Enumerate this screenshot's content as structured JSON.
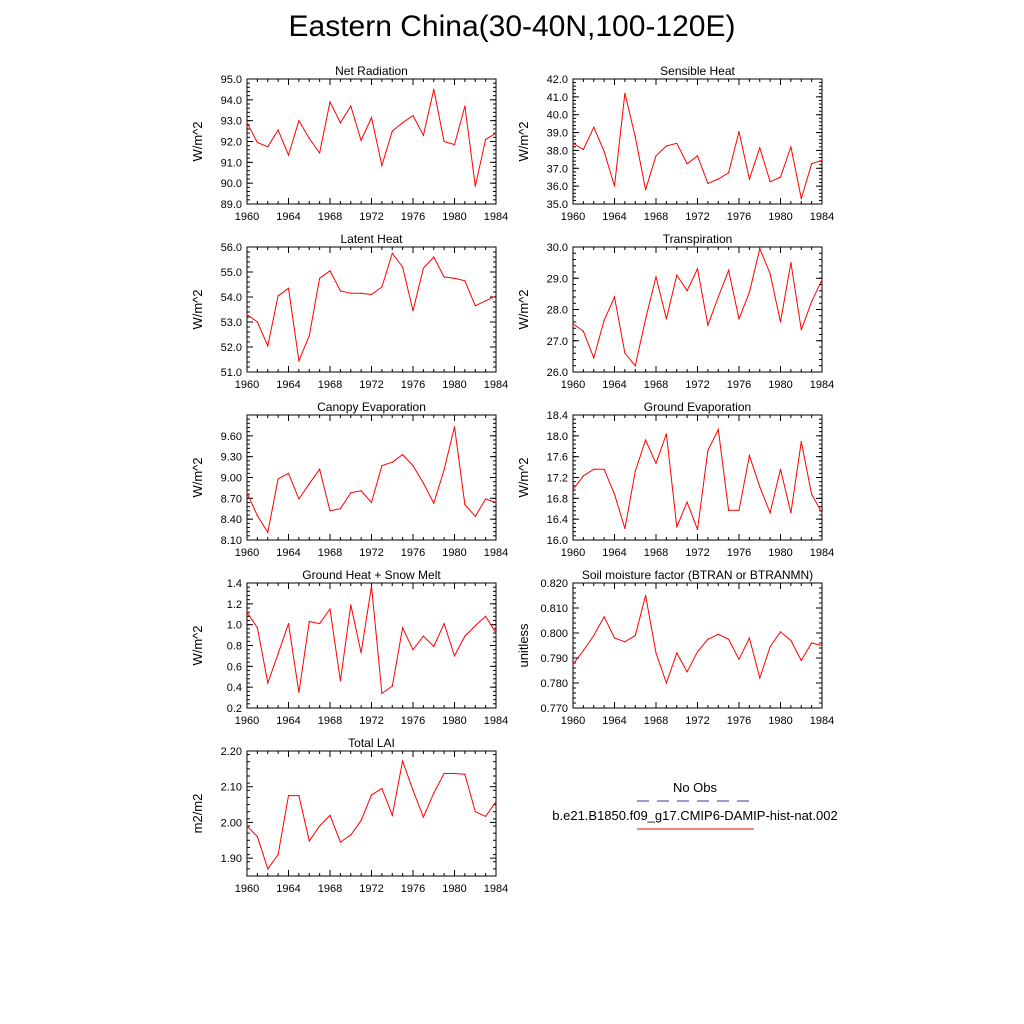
{
  "title": "Eastern China(30-40N,100-120E)",
  "colors": {
    "model": "#ff0000",
    "obs": "#3a3a9a",
    "axis": "#000000"
  },
  "legend": {
    "obs_label": "No Obs",
    "model_label": "b.e21.B1850.f09_g17.CMIP6-DAMIP-hist-nat.002"
  },
  "chart_data": [
    {
      "type": "line",
      "title": "Net Radiation",
      "xlabel": "",
      "ylabel": "W/m^2",
      "xlim": [
        1960,
        1984
      ],
      "ylim": [
        89.0,
        95.0
      ],
      "xticks": [
        "1960",
        "1964",
        "1968",
        "1972",
        "1976",
        "1980",
        "1984"
      ],
      "yticks": [
        "89.0",
        "90.0",
        "91.0",
        "92.0",
        "93.0",
        "94.0",
        "95.0"
      ],
      "ytick_values": [
        89,
        90,
        91,
        92,
        93,
        94,
        95
      ],
      "series": [
        {
          "x": [
            1960,
            1961,
            1962,
            1963,
            1964,
            1965,
            1966,
            1967,
            1968,
            1969,
            1970,
            1971,
            1972,
            1973,
            1974,
            1975,
            1976,
            1977,
            1978,
            1979,
            1980,
            1981,
            1982,
            1983,
            1984
          ],
          "values": [
            92.9,
            91.95,
            91.75,
            92.55,
            91.35,
            93.0,
            92.15,
            91.45,
            93.9,
            92.9,
            93.7,
            92.05,
            93.15,
            90.85,
            92.5,
            92.9,
            93.25,
            92.3,
            94.5,
            92.0,
            91.85,
            93.7,
            89.85,
            92.1,
            92.4
          ]
        }
      ]
    },
    {
      "type": "line",
      "title": "Sensible Heat",
      "xlabel": "",
      "ylabel": "W/m^2",
      "xlim": [
        1960,
        1984
      ],
      "ylim": [
        35.0,
        42.0
      ],
      "xticks": [
        "1960",
        "1964",
        "1968",
        "1972",
        "1976",
        "1980",
        "1984"
      ],
      "yticks": [
        "35.0",
        "36.0",
        "37.0",
        "38.0",
        "39.0",
        "40.0",
        "41.0",
        "42.0"
      ],
      "ytick_values": [
        35,
        36,
        37,
        38,
        39,
        40,
        41,
        42
      ],
      "series": [
        {
          "x": [
            1960,
            1961,
            1962,
            1963,
            1964,
            1965,
            1966,
            1967,
            1968,
            1969,
            1970,
            1971,
            1972,
            1973,
            1974,
            1975,
            1976,
            1977,
            1978,
            1979,
            1980,
            1981,
            1982,
            1983,
            1984
          ],
          "values": [
            38.4,
            38.05,
            39.3,
            37.95,
            36.0,
            41.2,
            38.75,
            35.8,
            37.7,
            38.25,
            38.4,
            37.25,
            37.7,
            36.15,
            36.4,
            36.75,
            39.05,
            36.4,
            38.15,
            36.25,
            36.5,
            38.2,
            35.3,
            37.25,
            37.45
          ]
        }
      ]
    },
    {
      "type": "line",
      "title": "Latent Heat",
      "xlabel": "",
      "ylabel": "W/m^2",
      "xlim": [
        1960,
        1984
      ],
      "ylim": [
        51.0,
        56.0
      ],
      "xticks": [
        "1960",
        "1964",
        "1968",
        "1972",
        "1976",
        "1980",
        "1984"
      ],
      "yticks": [
        "51.0",
        "52.0",
        "53.0",
        "54.0",
        "55.0",
        "56.0"
      ],
      "ytick_values": [
        51,
        52,
        53,
        54,
        55,
        56
      ],
      "series": [
        {
          "x": [
            1960,
            1961,
            1962,
            1963,
            1964,
            1965,
            1966,
            1967,
            1968,
            1969,
            1970,
            1971,
            1972,
            1973,
            1974,
            1975,
            1976,
            1977,
            1978,
            1979,
            1980,
            1981,
            1982,
            1983,
            1984
          ],
          "values": [
            53.3,
            53.0,
            52.05,
            54.05,
            54.35,
            51.45,
            52.45,
            54.75,
            55.05,
            54.25,
            54.15,
            54.15,
            54.1,
            54.4,
            55.75,
            55.2,
            53.45,
            55.15,
            55.6,
            54.8,
            54.75,
            54.65,
            53.65,
            53.85,
            54.05
          ]
        }
      ]
    },
    {
      "type": "line",
      "title": "Transpiration",
      "xlabel": "",
      "ylabel": "W/m^2",
      "xlim": [
        1960,
        1984
      ],
      "ylim": [
        26.0,
        30.0
      ],
      "xticks": [
        "1960",
        "1964",
        "1968",
        "1972",
        "1976",
        "1980",
        "1984"
      ],
      "yticks": [
        "26.0",
        "27.0",
        "28.0",
        "29.0",
        "30.0"
      ],
      "ytick_values": [
        26,
        27,
        28,
        29,
        30
      ],
      "series": [
        {
          "x": [
            1960,
            1961,
            1962,
            1963,
            1964,
            1965,
            1966,
            1967,
            1968,
            1969,
            1970,
            1971,
            1972,
            1973,
            1974,
            1975,
            1976,
            1977,
            1978,
            1979,
            1980,
            1981,
            1982,
            1983,
            1984
          ],
          "values": [
            27.55,
            27.3,
            26.45,
            27.65,
            28.4,
            26.6,
            26.2,
            27.7,
            29.05,
            27.7,
            29.1,
            28.6,
            29.3,
            27.5,
            28.4,
            29.25,
            27.7,
            28.55,
            29.95,
            29.15,
            27.6,
            29.5,
            27.35,
            28.25,
            28.95
          ]
        }
      ]
    },
    {
      "type": "line",
      "title": "Canopy Evaporation",
      "xlabel": "",
      "ylabel": "W/m^2",
      "xlim": [
        1960,
        1984
      ],
      "ylim": [
        8.1,
        9.9
      ],
      "xticks": [
        "1960",
        "1964",
        "1968",
        "1972",
        "1976",
        "1980",
        "1984"
      ],
      "yticks": [
        "8.10",
        "8.40",
        "8.70",
        "9.00",
        "9.30",
        "9.60"
      ],
      "ytick_values": [
        8.1,
        8.4,
        8.7,
        9.0,
        9.3,
        9.6
      ],
      "series": [
        {
          "x": [
            1960,
            1961,
            1962,
            1963,
            1964,
            1965,
            1966,
            1967,
            1968,
            1969,
            1970,
            1971,
            1972,
            1973,
            1974,
            1975,
            1976,
            1977,
            1978,
            1979,
            1980,
            1981,
            1982,
            1983,
            1984
          ],
          "values": [
            8.78,
            8.45,
            8.21,
            8.98,
            9.06,
            8.69,
            8.91,
            9.12,
            8.52,
            8.55,
            8.78,
            8.81,
            8.64,
            9.17,
            9.22,
            9.33,
            9.17,
            8.92,
            8.63,
            9.11,
            9.73,
            8.61,
            8.44,
            8.69,
            8.64
          ]
        }
      ]
    },
    {
      "type": "line",
      "title": "Ground Evaporation",
      "xlabel": "",
      "ylabel": "W/m^2",
      "xlim": [
        1960,
        1984
      ],
      "ylim": [
        16.0,
        18.4
      ],
      "xticks": [
        "1960",
        "1964",
        "1968",
        "1972",
        "1976",
        "1980",
        "1984"
      ],
      "yticks": [
        "16.0",
        "16.4",
        "16.8",
        "17.2",
        "17.6",
        "18.0",
        "18.4"
      ],
      "ytick_values": [
        16.0,
        16.4,
        16.8,
        17.2,
        17.6,
        18.0,
        18.4
      ],
      "series": [
        {
          "x": [
            1960,
            1961,
            1962,
            1963,
            1964,
            1965,
            1966,
            1967,
            1968,
            1969,
            1970,
            1971,
            1972,
            1973,
            1974,
            1975,
            1976,
            1977,
            1978,
            1979,
            1980,
            1981,
            1982,
            1983,
            1984
          ],
          "values": [
            16.97,
            17.23,
            17.36,
            17.36,
            16.88,
            16.22,
            17.32,
            17.92,
            17.47,
            18.04,
            16.25,
            16.73,
            16.2,
            17.72,
            18.12,
            16.57,
            16.57,
            17.62,
            17.02,
            16.52,
            17.36,
            16.52,
            17.89,
            16.88,
            16.52
          ]
        }
      ]
    },
    {
      "type": "line",
      "title": "Ground Heat + Snow Melt",
      "xlabel": "",
      "ylabel": "W/m^2",
      "xlim": [
        1960,
        1984
      ],
      "ylim": [
        0.2,
        1.4
      ],
      "xticks": [
        "1960",
        "1964",
        "1968",
        "1972",
        "1976",
        "1980",
        "1984"
      ],
      "yticks": [
        "0.2",
        "0.4",
        "0.6",
        "0.8",
        "1.0",
        "1.2",
        "1.4"
      ],
      "ytick_values": [
        0.2,
        0.4,
        0.6,
        0.8,
        1.0,
        1.2,
        1.4
      ],
      "series": [
        {
          "x": [
            1960,
            1961,
            1962,
            1963,
            1964,
            1965,
            1966,
            1967,
            1968,
            1969,
            1970,
            1971,
            1972,
            1973,
            1974,
            1975,
            1976,
            1977,
            1978,
            1979,
            1980,
            1981,
            1982,
            1983,
            1984
          ],
          "values": [
            1.12,
            0.97,
            0.44,
            0.72,
            1.01,
            0.35,
            1.03,
            1.01,
            1.15,
            0.46,
            1.19,
            0.73,
            1.37,
            0.34,
            0.41,
            0.97,
            0.76,
            0.89,
            0.79,
            1.01,
            0.7,
            0.89,
            0.99,
            1.08,
            0.92
          ]
        }
      ]
    },
    {
      "type": "line",
      "title": "Soil moisture factor (BTRAN or BTRANMN)",
      "xlabel": "",
      "ylabel": "unitless",
      "xlim": [
        1960,
        1984
      ],
      "ylim": [
        0.77,
        0.82
      ],
      "xticks": [
        "1960",
        "1964",
        "1968",
        "1972",
        "1976",
        "1980",
        "1984"
      ],
      "yticks": [
        "0.770",
        "0.780",
        "0.790",
        "0.800",
        "0.810",
        "0.820"
      ],
      "ytick_values": [
        0.77,
        0.78,
        0.79,
        0.8,
        0.81,
        0.82
      ],
      "series": [
        {
          "x": [
            1960,
            1961,
            1962,
            1963,
            1964,
            1965,
            1966,
            1967,
            1968,
            1969,
            1970,
            1971,
            1972,
            1973,
            1974,
            1975,
            1976,
            1977,
            1978,
            1979,
            1980,
            1981,
            1982,
            1983,
            1984
          ],
          "values": [
            0.7875,
            0.793,
            0.799,
            0.8065,
            0.798,
            0.7965,
            0.799,
            0.815,
            0.792,
            0.78,
            0.792,
            0.7845,
            0.7925,
            0.7975,
            0.7995,
            0.7975,
            0.7895,
            0.798,
            0.782,
            0.7945,
            0.8005,
            0.797,
            0.789,
            0.796,
            0.795
          ]
        }
      ]
    },
    {
      "type": "line",
      "title": "Total LAI",
      "xlabel": "",
      "ylabel": "m2/m2",
      "xlim": [
        1960,
        1984
      ],
      "ylim": [
        1.85,
        2.2
      ],
      "xticks": [
        "1960",
        "1964",
        "1968",
        "1972",
        "1976",
        "1980",
        "1984"
      ],
      "yticks": [
        "1.90",
        "2.00",
        "2.10",
        "2.20"
      ],
      "ytick_values": [
        1.9,
        2.0,
        2.1,
        2.2
      ],
      "series": [
        {
          "x": [
            1960,
            1961,
            1962,
            1963,
            1964,
            1965,
            1966,
            1967,
            1968,
            1969,
            1970,
            1971,
            1972,
            1973,
            1974,
            1975,
            1976,
            1977,
            1978,
            1979,
            1980,
            1981,
            1982,
            1983,
            1984
          ],
          "values": [
            1.99,
            1.96,
            1.87,
            1.91,
            2.075,
            2.075,
            1.948,
            1.99,
            2.02,
            1.945,
            1.965,
            2.005,
            2.077,
            2.095,
            2.02,
            2.172,
            2.09,
            2.015,
            2.082,
            2.137,
            2.137,
            2.135,
            2.03,
            2.017,
            2.058
          ]
        }
      ]
    }
  ]
}
